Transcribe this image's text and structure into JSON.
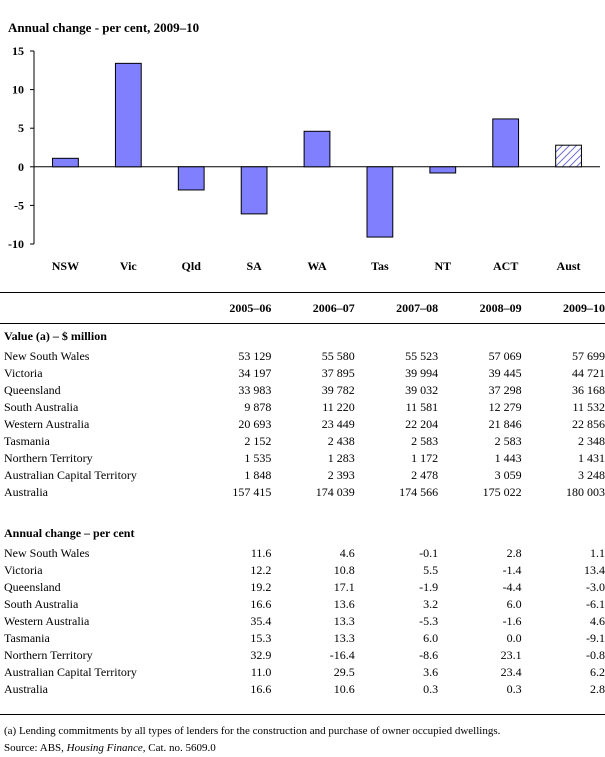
{
  "chart_data": {
    "type": "bar",
    "title": "Annual change - per cent, 2009–10",
    "categories": [
      "NSW",
      "Vic",
      "Qld",
      "SA",
      "WA",
      "Tas",
      "NT",
      "ACT",
      "Aust"
    ],
    "values": [
      1.1,
      13.4,
      -3.0,
      -6.1,
      4.6,
      -9.1,
      -0.8,
      6.2,
      2.8
    ],
    "ylim": [
      -10,
      15
    ],
    "yticks": [
      "15",
      "10",
      "5",
      "0",
      "-5",
      "-10"
    ],
    "bar_color": "#8080ff",
    "highlight_category": "Aust",
    "highlight_style": "hatched",
    "grid": false
  },
  "table": {
    "headers": [
      "2005–06",
      "2006–07",
      "2007–08",
      "2008–09",
      "2009–10"
    ],
    "sections": [
      {
        "title": "Value (a) – $ million",
        "rows": [
          {
            "label": "New South Wales",
            "values": [
              "53 129",
              "55 580",
              "55 523",
              "57 069",
              "57 699"
            ]
          },
          {
            "label": "Victoria",
            "values": [
              "34 197",
              "37 895",
              "39 994",
              "39 445",
              "44 721"
            ]
          },
          {
            "label": "Queensland",
            "values": [
              "33 983",
              "39 782",
              "39 032",
              "37 298",
              "36 168"
            ]
          },
          {
            "label": "South Australia",
            "values": [
              "9 878",
              "11 220",
              "11 581",
              "12 279",
              "11 532"
            ]
          },
          {
            "label": "Western Australia",
            "values": [
              "20 693",
              "23 449",
              "22 204",
              "21 846",
              "22 856"
            ]
          },
          {
            "label": "Tasmania",
            "values": [
              "2 152",
              "2 438",
              "2 583",
              "2 583",
              "2 348"
            ]
          },
          {
            "label": "Northern Territory",
            "values": [
              "1 535",
              "1 283",
              "1 172",
              "1 443",
              "1 431"
            ]
          },
          {
            "label": "Australian Capital Territory",
            "values": [
              "1 848",
              "2 393",
              "2 478",
              "3 059",
              "3 248"
            ]
          },
          {
            "label": "Australia",
            "values": [
              "157 415",
              "174 039",
              "174 566",
              "175 022",
              "180 003"
            ]
          }
        ]
      },
      {
        "title": "Annual change – per cent",
        "rows": [
          {
            "label": "New South Wales",
            "values": [
              "11.6",
              "4.6",
              "-0.1",
              "2.8",
              "1.1"
            ]
          },
          {
            "label": "Victoria",
            "values": [
              "12.2",
              "10.8",
              "5.5",
              "-1.4",
              "13.4"
            ]
          },
          {
            "label": "Queensland",
            "values": [
              "19.2",
              "17.1",
              "-1.9",
              "-4.4",
              "-3.0"
            ]
          },
          {
            "label": "South Australia",
            "values": [
              "16.6",
              "13.6",
              "3.2",
              "6.0",
              "-6.1"
            ]
          },
          {
            "label": "Western Australia",
            "values": [
              "35.4",
              "13.3",
              "-5.3",
              "-1.6",
              "4.6"
            ]
          },
          {
            "label": "Tasmania",
            "values": [
              "15.3",
              "13.3",
              "6.0",
              "0.0",
              "-9.1"
            ]
          },
          {
            "label": "Northern Territory",
            "values": [
              "32.9",
              "-16.4",
              "-8.6",
              "23.1",
              "-0.8"
            ]
          },
          {
            "label": "Australian Capital Territory",
            "values": [
              "11.0",
              "29.5",
              "3.6",
              "23.4",
              "6.2"
            ]
          },
          {
            "label": "Australia",
            "values": [
              "16.6",
              "10.6",
              "0.3",
              "0.3",
              "2.8"
            ]
          }
        ]
      }
    ]
  },
  "footnote": "(a) Lending commitments by all types of lenders for the construction and purchase of owner occupied dwellings.",
  "source": {
    "prefix": "Source: ABS, ",
    "publication": "Housing Finance",
    "suffix": ", Cat. no. 5609.0"
  }
}
